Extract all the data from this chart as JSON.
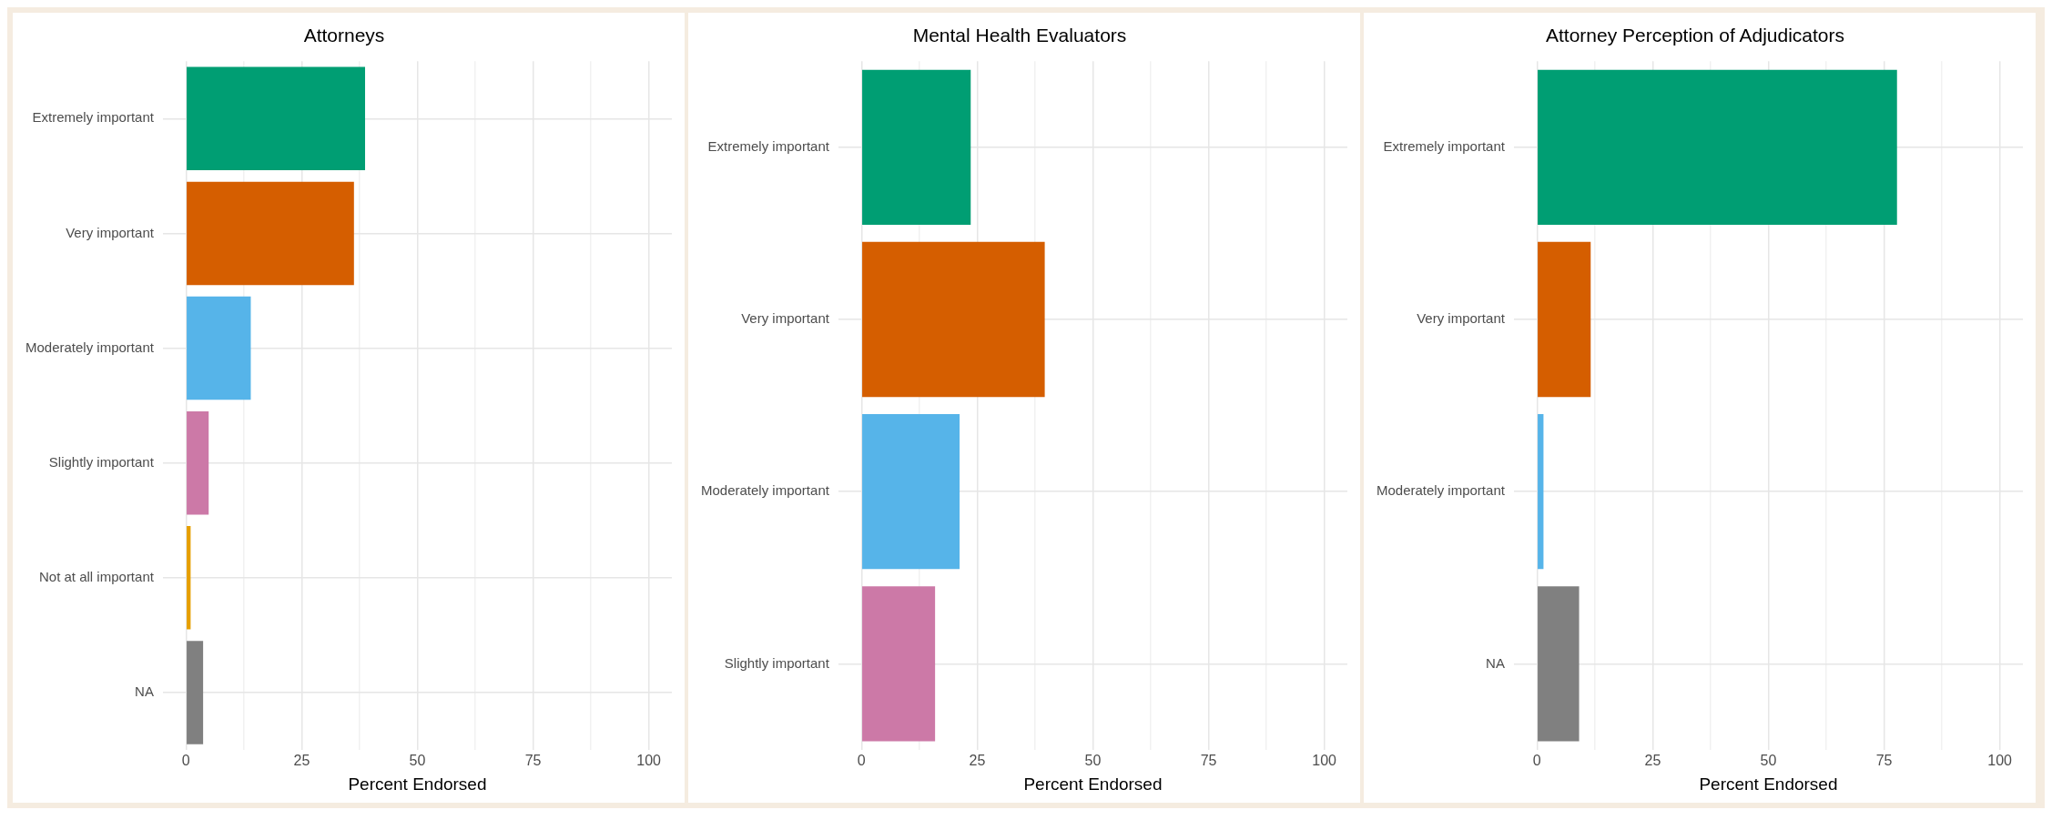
{
  "chart_data": [
    {
      "type": "bar",
      "orientation": "horizontal",
      "title": "Attorneys",
      "xlabel": "Percent Endorsed",
      "categories": [
        "Extremely important",
        "Very important",
        "Moderately important",
        "Slightly important",
        "Not at all important",
        "NA"
      ],
      "values": [
        38.7,
        36.3,
        14.0,
        4.9,
        1.0,
        3.7
      ],
      "colors": [
        "#009e73",
        "#d55e00",
        "#56b4e9",
        "#cc79a7",
        "#e69f00",
        "#808080"
      ],
      "xlim": [
        -5,
        105
      ],
      "xticks": [
        0,
        {
          "value": 12.5,
          "label": null
        },
        25,
        {
          "value": 37.5,
          "label": null
        },
        50,
        {
          "value": 62.5,
          "label": null
        },
        75,
        {
          "value": 87.5,
          "label": null
        },
        100
      ],
      "grid": true
    },
    {
      "type": "bar",
      "orientation": "horizontal",
      "title": "Mental Health Evaluators",
      "xlabel": "Percent Endorsed",
      "categories": [
        "Extremely important",
        "Very important",
        "Moderately important",
        "Slightly important"
      ],
      "values": [
        23.6,
        39.6,
        21.2,
        15.9
      ],
      "colors": [
        "#009e73",
        "#d55e00",
        "#56b4e9",
        "#cc79a7"
      ],
      "xlim": [
        -5,
        105
      ],
      "xticks": [
        0,
        {
          "value": 12.5,
          "label": null
        },
        25,
        {
          "value": 37.5,
          "label": null
        },
        50,
        {
          "value": 62.5,
          "label": null
        },
        75,
        {
          "value": 87.5,
          "label": null
        },
        100
      ],
      "grid": true
    },
    {
      "type": "bar",
      "orientation": "horizontal",
      "title": "Attorney Perception of Adjudicators",
      "xlabel": "Percent Endorsed",
      "categories": [
        "Extremely important",
        "Very important",
        "Moderately important",
        "NA"
      ],
      "values": [
        77.8,
        11.6,
        1.4,
        9.1
      ],
      "colors": [
        "#009e73",
        "#d55e00",
        "#56b4e9",
        "#808080"
      ],
      "xlim": [
        -5,
        105
      ],
      "xticks": [
        0,
        {
          "value": 12.5,
          "label": null
        },
        25,
        {
          "value": 37.5,
          "label": null
        },
        50,
        {
          "value": 62.5,
          "label": null
        },
        75,
        {
          "value": 87.5,
          "label": null
        },
        100
      ],
      "grid": true
    }
  ]
}
